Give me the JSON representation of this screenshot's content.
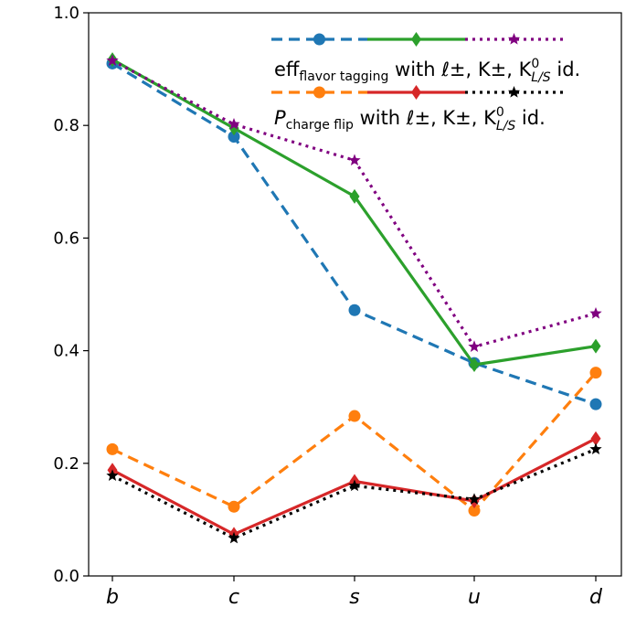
{
  "chart_data": {
    "type": "line",
    "categories": [
      "b",
      "c",
      "s",
      "u",
      "d"
    ],
    "ylim": [
      0.0,
      1.0
    ],
    "yticks": [
      "0.0",
      "0.2",
      "0.4",
      "0.6",
      "0.8",
      "1.0"
    ],
    "series": [
      {
        "name": "eff flavor tagging with ℓ±",
        "color": "#1f77b4",
        "linestyle": "dashed",
        "marker": "circle",
        "values": [
          0.91,
          0.78,
          0.472,
          0.378,
          0.305
        ]
      },
      {
        "name": "eff flavor tagging with K±",
        "color": "#2ca02c",
        "linestyle": "solid",
        "marker": "diamond",
        "values": [
          0.917,
          0.795,
          0.674,
          0.375,
          0.408
        ]
      },
      {
        "name": "eff flavor tagging with K0 L/S",
        "color": "#800080",
        "linestyle": "dotted",
        "marker": "star",
        "values": [
          0.915,
          0.802,
          0.738,
          0.407,
          0.466
        ]
      },
      {
        "name": "P charge flip with ℓ±",
        "color": "#ff7f0e",
        "linestyle": "dashed",
        "marker": "circle",
        "values": [
          0.225,
          0.123,
          0.284,
          0.116,
          0.361
        ]
      },
      {
        "name": "P charge flip with K±",
        "color": "#d62728",
        "linestyle": "solid",
        "marker": "diamond",
        "values": [
          0.188,
          0.074,
          0.168,
          0.133,
          0.244
        ]
      },
      {
        "name": "P charge flip with K0 L/S",
        "color": "#000000",
        "linestyle": "dotted",
        "marker": "star",
        "values": [
          0.178,
          0.067,
          0.16,
          0.136,
          0.225
        ]
      }
    ],
    "legend": {
      "row1": {
        "main": "eff",
        "sub": "flavor tagging",
        "rest": " with ℓ±, K±, K",
        "k_sup": "0",
        "k_sub": "L/S",
        "end": " id."
      },
      "row2": {
        "main": "P",
        "sub": "charge flip",
        "rest": " with ℓ±, K±, K",
        "k_sup": "0",
        "k_sub": "L/S",
        "end": " id."
      },
      "position": "top-right"
    }
  }
}
